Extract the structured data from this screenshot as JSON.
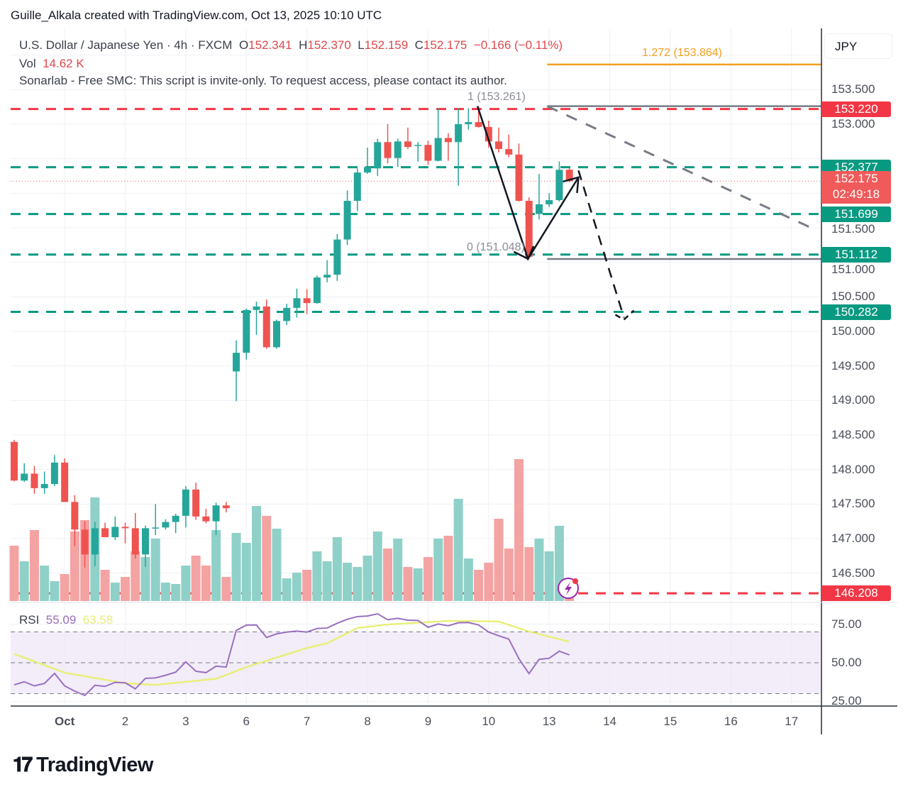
{
  "credit": "Guille_Alkala created with TradingView.com, Oct 13, 2025 10:10 UTC",
  "legend": {
    "symbol": "U.S. Dollar / Japanese Yen · 4h · FXCM",
    "o_label": "O",
    "o": "152.341",
    "h_label": "H",
    "h": "152.370",
    "l_label": "L",
    "l": "152.159",
    "c_label": "C",
    "c": "152.175",
    "change": "−0.166 (−0.11%)",
    "vol_label": "Vol",
    "vol": "14.62 K",
    "indicator": "Sonarlab - Free SMC: This script is invite-only. To request access, please contact its author."
  },
  "rsi_legend": {
    "label": "RSI",
    "rsi": "55.09",
    "ma": "63.58"
  },
  "currency_button": "JPY",
  "fib_labels": {
    "level_1272": "1.272 (153.864)",
    "level_1": "1 (153.261)",
    "level_0": "0 (151.048)"
  },
  "price_axis_labels": [
    "153.500",
    "153.000",
    "151.500",
    "151.000",
    "150.500",
    "150.000",
    "149.500",
    "149.000",
    "148.500",
    "148.000",
    "147.500",
    "147.000",
    "146.500"
  ],
  "rsi_axis_labels": [
    "75.00",
    "50.00",
    "25.00"
  ],
  "price_tags": [
    {
      "label": "153.220",
      "color": "#f23645"
    },
    {
      "label": "152.377",
      "color": "#089981"
    },
    {
      "label": "152.175",
      "sub": "02:49:18",
      "color": "#f05a5a"
    },
    {
      "label": "151.699",
      "color": "#089981"
    },
    {
      "label": "151.112",
      "color": "#089981"
    },
    {
      "label": "150.282",
      "color": "#089981"
    },
    {
      "label": "146.208",
      "color": "#f23645"
    }
  ],
  "time_axis_labels": [
    "Oct",
    "2",
    "3",
    "6",
    "7",
    "8",
    "9",
    "10",
    "13",
    "14",
    "15",
    "16",
    "17"
  ],
  "logo": "TradingView",
  "colors": {
    "up": "#26a69a",
    "down": "#ef5350",
    "vol_up": "#8fd1c8",
    "vol_down": "#f4a3a3",
    "rsi": "#9a6fc0",
    "rsi_ma": "#e9ef7a",
    "fib_ext": "#f0a020",
    "grid": "#edf0f4"
  },
  "chart_data": {
    "type": "candlestick",
    "interval": "4h",
    "ylim": [
      145.9,
      154.4
    ],
    "rsi_ylim": [
      20,
      90
    ],
    "rsi_bands": [
      70,
      50,
      30
    ],
    "candles_ohlc": [
      [
        148.4,
        148.43,
        147.83,
        147.84
      ],
      [
        147.84,
        148.09,
        147.82,
        147.94
      ],
      [
        147.94,
        148.05,
        147.65,
        147.73
      ],
      [
        147.73,
        147.97,
        147.65,
        147.79
      ],
      [
        147.79,
        148.21,
        147.76,
        148.1
      ],
      [
        148.1,
        148.16,
        147.53,
        147.53
      ],
      [
        147.53,
        147.63,
        146.89,
        147.13
      ],
      [
        147.13,
        147.25,
        146.58,
        146.77
      ],
      [
        146.77,
        147.24,
        146.6,
        147.15
      ],
      [
        147.15,
        147.23,
        147.02,
        147.02
      ],
      [
        147.02,
        147.32,
        146.98,
        147.17
      ],
      [
        147.17,
        147.23,
        146.93,
        147.15
      ],
      [
        147.15,
        147.37,
        146.71,
        146.77
      ],
      [
        146.77,
        147.19,
        146.59,
        147.15
      ],
      [
        147.15,
        147.5,
        147.05,
        147.16
      ],
      [
        147.16,
        147.28,
        147.13,
        147.24
      ],
      [
        147.24,
        147.36,
        147.08,
        147.33
      ],
      [
        147.33,
        147.76,
        147.16,
        147.71
      ],
      [
        147.71,
        147.81,
        147.27,
        147.32
      ],
      [
        147.32,
        147.43,
        147.22,
        147.25
      ],
      [
        147.25,
        147.52,
        147.05,
        147.48
      ],
      [
        147.48,
        147.53,
        147.38,
        147.44
      ],
      [
        149.42,
        149.87,
        148.99,
        149.69
      ],
      [
        149.69,
        150.33,
        149.59,
        150.31
      ],
      [
        150.31,
        150.43,
        149.95,
        150.36
      ],
      [
        150.36,
        150.46,
        149.75,
        149.77
      ],
      [
        149.77,
        150.17,
        149.75,
        150.15
      ],
      [
        150.15,
        150.4,
        150.09,
        150.34
      ],
      [
        150.34,
        150.62,
        150.2,
        150.48
      ],
      [
        150.48,
        150.61,
        150.25,
        150.41
      ],
      [
        150.41,
        150.81,
        150.4,
        150.78
      ],
      [
        150.78,
        151.03,
        150.71,
        150.82
      ],
      [
        150.82,
        151.41,
        150.73,
        151.33
      ],
      [
        151.33,
        152.04,
        151.25,
        151.89
      ],
      [
        151.89,
        152.36,
        151.74,
        152.3
      ],
      [
        152.3,
        152.66,
        152.28,
        152.38
      ],
      [
        152.36,
        152.79,
        152.25,
        152.74
      ],
      [
        152.74,
        153.0,
        152.43,
        152.51
      ],
      [
        152.51,
        152.79,
        152.38,
        152.75
      ],
      [
        152.75,
        152.95,
        152.64,
        152.67
      ],
      [
        152.69,
        152.74,
        152.46,
        152.7
      ],
      [
        152.7,
        152.76,
        152.41,
        152.47
      ],
      [
        152.47,
        153.23,
        152.46,
        152.8
      ],
      [
        152.8,
        152.87,
        152.47,
        152.74
      ],
      [
        152.74,
        153.23,
        152.11,
        153.0
      ],
      [
        153.0,
        153.23,
        152.92,
        153.03
      ],
      [
        153.03,
        153.26,
        152.95,
        152.96
      ],
      [
        152.96,
        153.05,
        152.66,
        152.75
      ],
      [
        152.75,
        152.95,
        152.59,
        152.64
      ],
      [
        152.64,
        152.85,
        152.52,
        152.56
      ],
      [
        152.56,
        152.72,
        151.88,
        151.89
      ],
      [
        151.89,
        151.94,
        151.05,
        151.08
      ],
      [
        151.7,
        152.28,
        151.62,
        151.84
      ],
      [
        151.84,
        152.0,
        151.8,
        151.9
      ],
      [
        151.9,
        152.46,
        151.88,
        152.34
      ],
      [
        152.341,
        152.37,
        152.159,
        152.175
      ]
    ],
    "volume_relative": [
      0.39,
      0.28,
      0.5,
      0.25,
      0.14,
      0.19,
      0.49,
      0.57,
      0.73,
      0.22,
      0.13,
      0.17,
      0.35,
      0.31,
      0.44,
      0.13,
      0.12,
      0.25,
      0.32,
      0.25,
      0.5,
      0.17,
      0.48,
      0.41,
      0.67,
      0.6,
      0.51,
      0.16,
      0.2,
      0.22,
      0.35,
      0.28,
      0.45,
      0.27,
      0.24,
      0.32,
      0.49,
      0.37,
      0.44,
      0.24,
      0.23,
      0.31,
      0.44,
      0.46,
      0.72,
      0.3,
      0.22,
      0.27,
      0.58,
      0.37,
      1.0,
      0.38,
      0.44,
      0.35,
      0.53,
      0.03
    ],
    "rsi": [
      35.7,
      37.7,
      35,
      36.6,
      43.1,
      35,
      31.6,
      28.8,
      35.4,
      34.7,
      37.3,
      37,
      33.1,
      39.9,
      40.2,
      41.9,
      43.9,
      50.6,
      44.5,
      43.6,
      47.8,
      47.2,
      71,
      74.4,
      74.5,
      66.4,
      68.7,
      69.9,
      70.5,
      69.9,
      72.2,
      72.5,
      75.6,
      78.2,
      79.9,
      80.3,
      81.7,
      77.9,
      78.8,
      77.6,
      77.4,
      73,
      75.1,
      74,
      75.9,
      76.1,
      74.5,
      69.9,
      67.5,
      65.3,
      52.6,
      43,
      52.2,
      52.9,
      57.5,
      55.09
    ],
    "rsi_ma": [
      55.7,
      53.3,
      50.9,
      48.4,
      46.0,
      43.6,
      42.4,
      41.3,
      40.1,
      39.0,
      37.8,
      36.7,
      36.4,
      36.0,
      35.7,
      36.4,
      37.0,
      37.7,
      38.3,
      39.0,
      39.6,
      42.1,
      44.7,
      47.2,
      49.3,
      51.3,
      53.4,
      55.5,
      57.5,
      59.6,
      61.1,
      62.6,
      65.9,
      69.2,
      72.5,
      73.3,
      74.0,
      74.8,
      75.2,
      75.6,
      76.0,
      76.3,
      76.7,
      77.1,
      77.0,
      77.0,
      76.9,
      76.8,
      76.7,
      74.5,
      72.4,
      70.2,
      68.6,
      66.9,
      65.3,
      63.6
    ],
    "horizontal_levels": [
      {
        "price": 153.22,
        "color": "#f23645",
        "style": "dashed"
      },
      {
        "price": 152.377,
        "color": "#089981",
        "style": "dashed"
      },
      {
        "price": 151.699,
        "color": "#089981",
        "style": "dashed"
      },
      {
        "price": 151.112,
        "color": "#089981",
        "style": "dashed"
      },
      {
        "price": 150.282,
        "color": "#089981",
        "style": "dashed"
      },
      {
        "price": 146.208,
        "color": "#f23645",
        "style": "dashed"
      }
    ],
    "fib_levels": [
      {
        "level": 1.272,
        "price": 153.864
      },
      {
        "level": 1,
        "price": 153.261
      },
      {
        "level": 0,
        "price": 151.048
      }
    ],
    "drawings": {
      "swing_arrow": [
        [
          45.9,
          153.26
        ],
        [
          50.9,
          151.05
        ],
        [
          55.9,
          152.23
        ]
      ],
      "projection_arrow": [
        [
          55.9,
          152.33
        ],
        [
          60.4,
          150.2
        ]
      ],
      "trendline": [
        [
          52.8,
          153.26
        ],
        [
          79.1,
          151.49
        ]
      ]
    }
  }
}
